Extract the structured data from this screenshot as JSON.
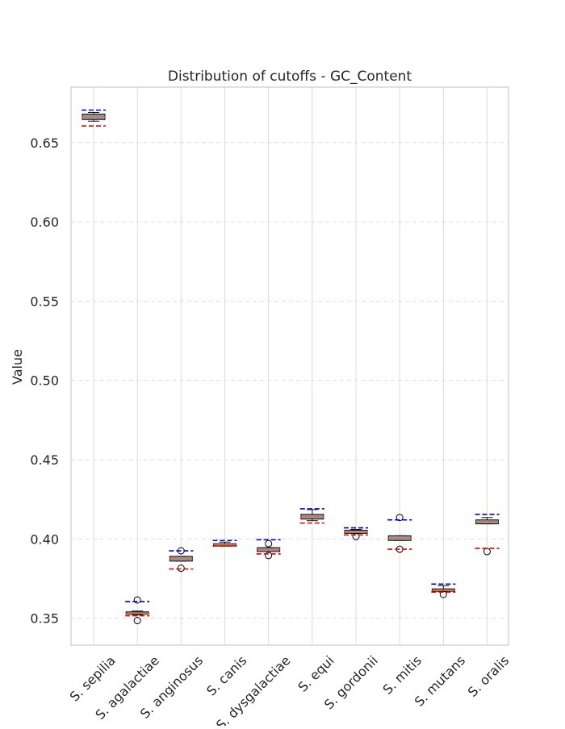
{
  "chart_data": {
    "type": "box",
    "title": "Distribution of cutoffs - GC_Content",
    "xlabel": "",
    "ylabel": "Value",
    "ylim": [
      0.333,
      0.685
    ],
    "yticks": [
      "0.35",
      "0.40",
      "0.45",
      "0.50",
      "0.55",
      "0.60",
      "0.65"
    ],
    "grid": true,
    "colors": {
      "box_fill": "#8c8fa6",
      "box_edge": "#111111",
      "median": "#e07b39",
      "upper_cutoff": "#0000cc",
      "lower_cutoff": "#e00000",
      "grid": "#dddddd",
      "frame": "#cccccc"
    },
    "categories": [
      "S. sepilia",
      "S. agalactiae",
      "S. anginosus",
      "S. canis",
      "S. dysgalactiae",
      "S. equi",
      "S. gordonii",
      "S. mitis",
      "S. mutans",
      "S. oralis"
    ],
    "boxes": [
      {
        "whisker_low": 0.6635,
        "q1": 0.6645,
        "median": 0.666,
        "q3": 0.668,
        "whisker_high": 0.669,
        "outliers": []
      },
      {
        "whisker_low": 0.352,
        "q1": 0.3525,
        "median": 0.353,
        "q3": 0.354,
        "whisker_high": 0.3545,
        "outliers": [
          0.3485,
          0.3615
        ]
      },
      {
        "whisker_low": 0.386,
        "q1": 0.386,
        "median": 0.3875,
        "q3": 0.389,
        "whisker_high": 0.389,
        "outliers": [
          0.3815,
          0.3925
        ]
      },
      {
        "whisker_low": 0.3955,
        "q1": 0.3955,
        "median": 0.3965,
        "q3": 0.397,
        "whisker_high": 0.398,
        "outliers": []
      },
      {
        "whisker_low": 0.392,
        "q1": 0.392,
        "median": 0.3935,
        "q3": 0.3945,
        "whisker_high": 0.3945,
        "outliers": [
          0.3895,
          0.397
        ]
      },
      {
        "whisker_low": 0.4115,
        "q1": 0.4125,
        "median": 0.414,
        "q3": 0.4155,
        "whisker_high": 0.4185,
        "outliers": []
      },
      {
        "whisker_low": 0.4035,
        "q1": 0.4035,
        "median": 0.4045,
        "q3": 0.4055,
        "whisker_high": 0.406,
        "outliers": [
          0.4015
        ]
      },
      {
        "whisker_low": 0.399,
        "q1": 0.399,
        "median": 0.4005,
        "q3": 0.402,
        "whisker_high": 0.402,
        "outliers": [
          0.3935,
          0.4135
        ]
      },
      {
        "whisker_low": 0.367,
        "q1": 0.367,
        "median": 0.3675,
        "q3": 0.3685,
        "whisker_high": 0.3705,
        "outliers": [
          0.365
        ]
      },
      {
        "whisker_low": 0.4095,
        "q1": 0.4095,
        "median": 0.411,
        "q3": 0.412,
        "whisker_high": 0.4135,
        "outliers": [
          0.392
        ]
      }
    ],
    "upper_cutoffs": [
      0.6705,
      0.3605,
      0.3925,
      0.399,
      0.3995,
      0.419,
      0.407,
      0.412,
      0.3715,
      0.4155
    ],
    "lower_cutoffs": [
      0.6605,
      0.3515,
      0.381,
      0.3955,
      0.3905,
      0.41,
      0.4025,
      0.3935,
      0.3665,
      0.394
    ]
  }
}
